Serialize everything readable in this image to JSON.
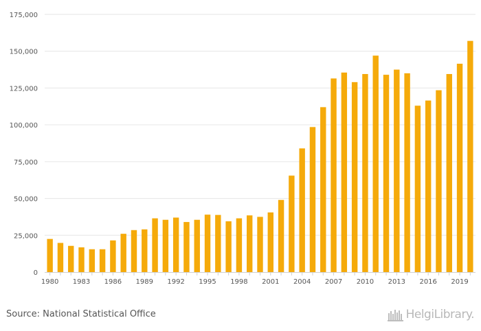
{
  "chart_data": {
    "type": "bar",
    "title": "",
    "xlabel": "",
    "ylabel": "",
    "ylim": [
      0,
      175000
    ],
    "yticks": [
      0,
      25000,
      50000,
      75000,
      100000,
      125000,
      150000,
      175000
    ],
    "ytick_labels": [
      "0",
      "25,000",
      "50,000",
      "75,000",
      "100,000",
      "125,000",
      "150,000",
      "175,000"
    ],
    "xtick_labels": [
      "1980",
      "1983",
      "1986",
      "1989",
      "1992",
      "1995",
      "1998",
      "2001",
      "2004",
      "2007",
      "2010",
      "2013",
      "2016",
      "2019"
    ],
    "categories": [
      "1980",
      "1981",
      "1982",
      "1983",
      "1984",
      "1985",
      "1986",
      "1987",
      "1988",
      "1989",
      "1990",
      "1991",
      "1992",
      "1993",
      "1994",
      "1995",
      "1996",
      "1997",
      "1998",
      "1999",
      "2000",
      "2001",
      "2002",
      "2003",
      "2004",
      "2005",
      "2006",
      "2007",
      "2008",
      "2009",
      "2010",
      "2011",
      "2012",
      "2013",
      "2014",
      "2015",
      "2016",
      "2017",
      "2018",
      "2019",
      "2020"
    ],
    "values": [
      22500,
      19800,
      17800,
      16800,
      15500,
      15500,
      21500,
      26000,
      28500,
      29000,
      36500,
      35500,
      37000,
      34000,
      35500,
      39000,
      38800,
      34500,
      36500,
      38500,
      37500,
      40500,
      49000,
      65500,
      84000,
      98500,
      112000,
      131500,
      135500,
      129000,
      134500,
      147000,
      134000,
      137500,
      135000,
      113000,
      116500,
      123500,
      134500,
      141500,
      157000
    ],
    "bar_color": "#f5aa0a",
    "grid": true
  },
  "footer": {
    "source": "Source: National Statistical Office",
    "logo_text": "HelgiLibrary."
  }
}
